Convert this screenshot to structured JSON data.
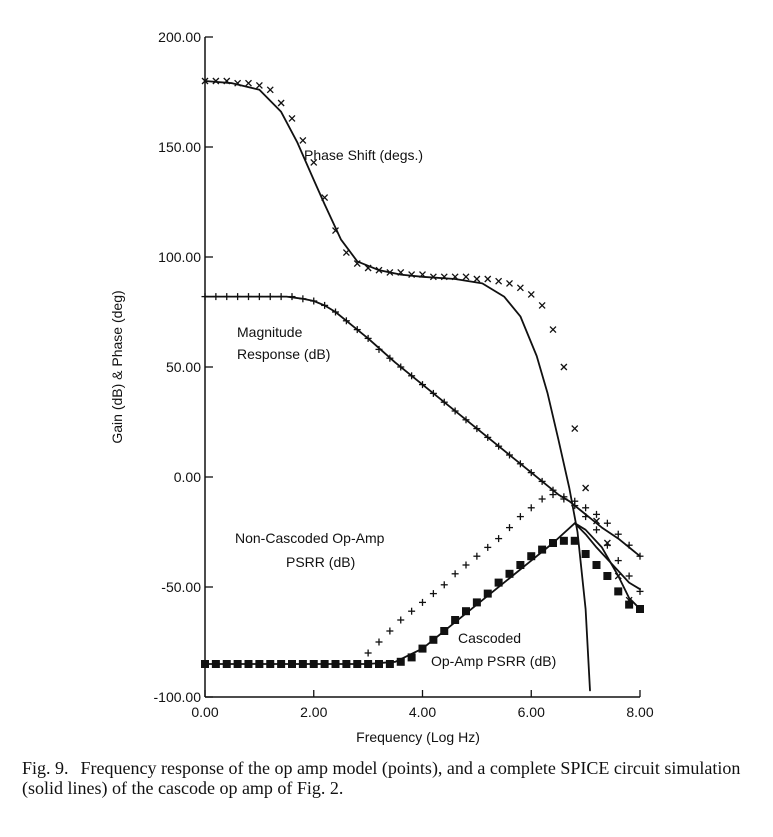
{
  "chart_data": {
    "type": "line",
    "xlabel": "Frequency (Log Hz)",
    "ylabel": "Gain (dB) & Phase (deg)",
    "xlim": [
      0,
      8
    ],
    "ylim": [
      -100,
      200
    ],
    "x_ticks": [
      "0.00",
      "2.00",
      "4.00",
      "6.00",
      "8.00"
    ],
    "y_ticks": [
      "200.00",
      "150.00",
      "100.00",
      "50.00",
      "0.00",
      "-50.00",
      "-100.00"
    ],
    "annotations": {
      "phase": [
        "Phase Shift (degs.)"
      ],
      "magnitude": [
        "Magnitude",
        "Response (dB)"
      ],
      "noncascoded": [
        "Non-Cascoded Op-Amp",
        "PSRR (dB)"
      ],
      "cascoded": [
        "Cascoded",
        "Op-Amp PSRR (dB)"
      ]
    },
    "series": [
      {
        "kind": "line",
        "x": [
          0,
          0.5,
          1.0,
          1.4,
          1.7,
          2.0,
          2.2,
          2.5,
          2.8,
          3.2,
          3.6,
          4.0,
          4.6,
          5.1,
          5.5,
          5.8,
          6.1,
          6.3,
          6.5,
          6.7,
          6.85,
          7.0,
          7.08
        ],
        "y": [
          180,
          179,
          176,
          166,
          152,
          135,
          124,
          108,
          98,
          94,
          92,
          91,
          90,
          88,
          82,
          73,
          55,
          38,
          17,
          -5,
          -25,
          -60,
          -97
        ]
      },
      {
        "kind": "points",
        "marker": "x",
        "x": [
          0,
          0.2,
          0.4,
          0.6,
          0.8,
          1.0,
          1.2,
          1.4,
          1.6,
          1.8,
          2.0,
          2.2,
          2.4,
          2.6,
          2.8,
          3.0,
          3.2,
          3.4,
          3.6,
          3.8,
          4.0,
          4.2,
          4.4,
          4.6,
          4.8,
          5.0,
          5.2,
          5.4,
          5.6,
          5.8,
          6.0,
          6.2,
          6.4,
          6.6,
          6.8,
          7.0,
          7.2,
          7.4,
          7.6,
          7.8,
          8.0
        ],
        "y": [
          180,
          180,
          180,
          179,
          179,
          178,
          176,
          170,
          163,
          153,
          143,
          127,
          112,
          102,
          97,
          95,
          94,
          93,
          93,
          92,
          92,
          91,
          91,
          91,
          91,
          90,
          90,
          89,
          88,
          86,
          83,
          78,
          67,
          50,
          22,
          -5,
          -20,
          -30,
          -45,
          -56,
          -60
        ]
      },
      {
        "kind": "line",
        "x": [
          0,
          0.5,
          1.0,
          1.5,
          1.8,
          2.0,
          2.2,
          2.4,
          2.6,
          3.0,
          3.5,
          4.0,
          4.5,
          5.0,
          5.5,
          6.0,
          6.3,
          6.5,
          6.7,
          6.9,
          7.1,
          7.3,
          7.6,
          8.0
        ],
        "y": [
          82,
          82,
          82,
          82,
          81,
          80,
          78,
          75,
          71,
          63,
          52,
          42,
          32,
          22,
          12,
          2,
          -4,
          -8,
          -11,
          -15,
          -19,
          -23,
          -28,
          -36
        ]
      },
      {
        "kind": "points",
        "marker": "+",
        "x": [
          0,
          0.2,
          0.4,
          0.6,
          0.8,
          1.0,
          1.2,
          1.4,
          1.6,
          1.8,
          2.0,
          2.2,
          2.4,
          2.6,
          2.8,
          3.0,
          3.2,
          3.4,
          3.6,
          3.8,
          4.0,
          4.2,
          4.4,
          4.6,
          4.8,
          5.0,
          5.2,
          5.4,
          5.6,
          5.8,
          6.0,
          6.2,
          6.4,
          6.6,
          6.8,
          7.0,
          7.2,
          7.4,
          7.6,
          7.8,
          8.0
        ],
        "y": [
          82,
          82,
          82,
          82,
          82,
          82,
          82,
          82,
          82,
          81,
          80,
          78,
          75,
          71,
          67,
          63,
          58,
          54,
          50,
          46,
          42,
          38,
          34,
          30,
          26,
          22,
          18,
          14,
          10,
          6,
          2,
          -2,
          -6,
          -9,
          -11,
          -14,
          -17,
          -21,
          -26,
          -31,
          -36
        ]
      },
      {
        "kind": "points",
        "marker": "+",
        "x": [
          2.8,
          3.0,
          3.2,
          3.4,
          3.6,
          3.8,
          4.0,
          4.2,
          4.4,
          4.6,
          4.8,
          5.0,
          5.2,
          5.4,
          5.6,
          5.8,
          6.0,
          6.2,
          6.4,
          6.6,
          6.8,
          7.0,
          7.2,
          7.4,
          7.6,
          7.8,
          8.0
        ],
        "y": [
          -85,
          -80,
          -75,
          -70,
          -65,
          -61,
          -57,
          -53,
          -49,
          -44,
          -40,
          -36,
          -32,
          -28,
          -23,
          -18,
          -14,
          -10,
          -8,
          -10,
          -13,
          -18,
          -24,
          -31,
          -38,
          -45,
          -52
        ]
      },
      {
        "kind": "points",
        "marker": "square",
        "x": [
          0,
          0.2,
          0.4,
          0.6,
          0.8,
          1.0,
          1.2,
          1.4,
          1.6,
          1.8,
          2.0,
          2.2,
          2.4,
          2.6,
          2.8,
          3.0,
          3.2,
          3.4,
          3.6,
          3.8,
          4.0,
          4.2,
          4.4,
          4.6,
          4.8,
          5.0,
          5.2,
          5.4,
          5.6,
          5.8,
          6.0,
          6.2,
          6.4,
          6.6,
          6.8,
          7.0,
          7.2,
          7.4,
          7.6,
          7.8,
          8.0
        ],
        "y": [
          -85,
          -85,
          -85,
          -85,
          -85,
          -85,
          -85,
          -85,
          -85,
          -85,
          -85,
          -85,
          -85,
          -85,
          -85,
          -85,
          -85,
          -85,
          -84,
          -82,
          -78,
          -74,
          -70,
          -65,
          -61,
          -57,
          -53,
          -48,
          -44,
          -40,
          -36,
          -33,
          -30,
          -29,
          -29,
          -35,
          -40,
          -45,
          -52,
          -58,
          -60
        ]
      },
      {
        "kind": "line",
        "x": [
          0,
          1.0,
          2.0,
          3.0,
          3.5,
          4.0,
          4.5,
          5.0,
          5.5,
          6.0,
          6.4,
          6.8,
          7.0,
          7.2,
          7.5,
          7.8,
          8.0
        ],
        "y": [
          -85,
          -85,
          -85,
          -85,
          -84,
          -78,
          -68,
          -58,
          -48,
          -38,
          -30,
          -21,
          -26,
          -32,
          -40,
          -48,
          -51
        ]
      },
      {
        "kind": "line",
        "x": [
          6.8,
          7.0,
          7.3,
          7.6,
          7.8,
          8.0
        ],
        "y": [
          -21,
          -24,
          -32,
          -45,
          -55,
          -60
        ]
      }
    ]
  },
  "caption": {
    "label": "Fig. 9.",
    "text": "Frequency response of the op amp model (points), and a complete SPICE circuit simulation (solid lines) of the cascode op amp of Fig. 2."
  }
}
